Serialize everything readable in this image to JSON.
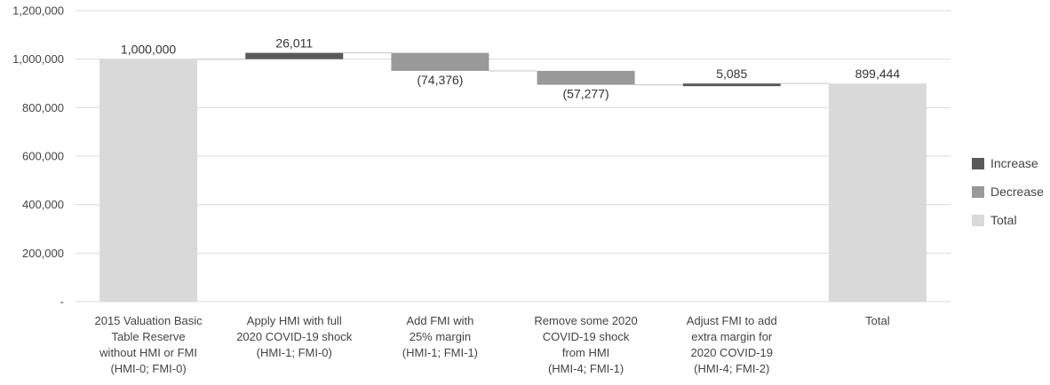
{
  "chart_data": {
    "type": "bar",
    "subtype": "waterfall",
    "title": "",
    "xlabel": "",
    "ylabel": "",
    "ylim": [
      0,
      1200000
    ],
    "yticks": [
      0,
      200000,
      400000,
      600000,
      800000,
      1000000,
      1200000
    ],
    "ytick_labels": [
      "-",
      "200,000",
      "400,000",
      "600,000",
      "800,000",
      "1,000,000",
      "1,200,000"
    ],
    "grid": true,
    "legend_position": "right",
    "categories": [
      [
        "2015 Valuation Basic",
        "Table Reserve",
        "without HMI or FMI",
        "(HMI-0; FMI-0)"
      ],
      [
        "Apply HMI with full",
        "2020 COVID-19 shock",
        "(HMI-1; FMI-0)"
      ],
      [
        "Add FMI with",
        "25% margin",
        "(HMI-1; FMI-1)"
      ],
      [
        "Remove some 2020",
        "COVID-19 shock",
        "from HMI",
        "(HMI-4; FMI-1)"
      ],
      [
        "Adjust FMI to add",
        "extra margin for",
        "2020 COVID-19",
        "(HMI-4; FMI-2)"
      ],
      [
        "Total"
      ]
    ],
    "steps": [
      {
        "kind": "total",
        "value": 1000000,
        "label": "1,000,000"
      },
      {
        "kind": "increase",
        "value": 26011,
        "label": "26,011"
      },
      {
        "kind": "decrease",
        "value": -74376,
        "label": "(74,376)"
      },
      {
        "kind": "decrease",
        "value": -57277,
        "label": "(57,277)"
      },
      {
        "kind": "increase",
        "value": 5085,
        "label": "5,085"
      },
      {
        "kind": "total",
        "value": 899444,
        "label": "899,444"
      }
    ],
    "series": [
      {
        "name": "Increase",
        "color": "#595959"
      },
      {
        "name": "Decrease",
        "color": "#999999"
      },
      {
        "name": "Total",
        "color": "#d9d9d9"
      }
    ],
    "colors": {
      "grid": "#d9d9d9",
      "connector": "#d0d0d0"
    }
  }
}
